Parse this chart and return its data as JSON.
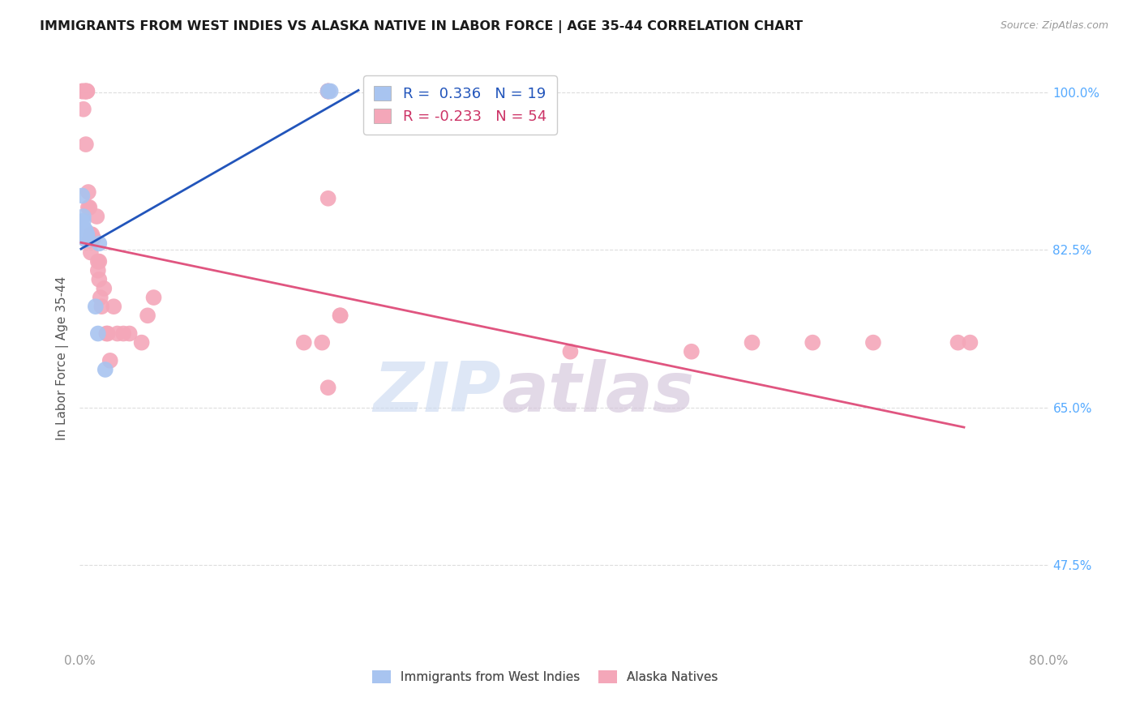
{
  "title": "IMMIGRANTS FROM WEST INDIES VS ALASKA NATIVE IN LABOR FORCE | AGE 35-44 CORRELATION CHART",
  "source": "Source: ZipAtlas.com",
  "ylabel": "In Labor Force | Age 35-44",
  "xlim": [
    0.0,
    0.8
  ],
  "ylim": [
    0.38,
    1.03
  ],
  "xticks": [
    0.0,
    0.1,
    0.2,
    0.3,
    0.4,
    0.5,
    0.6,
    0.7,
    0.8
  ],
  "xticklabels": [
    "0.0%",
    "",
    "",
    "",
    "",
    "",
    "",
    "",
    "80.0%"
  ],
  "ytick_labels_right": [
    "100.0%",
    "82.5%",
    "65.0%",
    "47.5%"
  ],
  "ytick_vals_right": [
    1.0,
    0.825,
    0.65,
    0.475
  ],
  "legend_r_blue": "0.336",
  "legend_n_blue": "19",
  "legend_r_pink": "-0.233",
  "legend_n_pink": "54",
  "blue_color": "#a8c4f0",
  "pink_color": "#f4a7b9",
  "blue_line_color": "#2255bb",
  "pink_line_color": "#e05580",
  "watermark_zip": "ZIP",
  "watermark_atlas": "atlas",
  "blue_line_x": [
    0.001,
    0.23
  ],
  "blue_line_y": [
    0.826,
    1.002
  ],
  "pink_line_x": [
    0.001,
    0.73
  ],
  "pink_line_y": [
    0.833,
    0.628
  ],
  "blue_points_x": [
    0.002,
    0.003,
    0.003,
    0.004,
    0.004,
    0.004,
    0.004,
    0.005,
    0.005,
    0.005,
    0.005,
    0.006,
    0.006,
    0.013,
    0.015,
    0.016,
    0.021,
    0.205,
    0.207
  ],
  "blue_points_y": [
    0.885,
    0.862,
    0.857,
    0.848,
    0.843,
    0.842,
    0.838,
    0.837,
    0.836,
    0.841,
    0.846,
    0.842,
    0.841,
    0.762,
    0.732,
    0.832,
    0.692,
    1.001,
    1.001
  ],
  "pink_points_x": [
    0.002,
    0.002,
    0.003,
    0.004,
    0.004,
    0.005,
    0.005,
    0.005,
    0.006,
    0.006,
    0.007,
    0.007,
    0.008,
    0.008,
    0.009,
    0.009,
    0.01,
    0.01,
    0.011,
    0.011,
    0.014,
    0.015,
    0.015,
    0.016,
    0.016,
    0.017,
    0.018,
    0.02,
    0.022,
    0.023,
    0.025,
    0.028,
    0.031,
    0.036,
    0.041,
    0.051,
    0.056,
    0.061,
    0.185,
    0.2,
    0.205,
    0.205,
    0.205,
    0.205,
    0.205,
    0.215,
    0.215,
    0.405,
    0.505,
    0.555,
    0.605,
    0.655,
    0.725,
    0.735
  ],
  "pink_points_y": [
    1.001,
    1.001,
    0.981,
    1.001,
    1.001,
    1.001,
    1.001,
    0.942,
    1.001,
    1.001,
    0.889,
    0.872,
    0.872,
    0.835,
    0.842,
    0.822,
    0.837,
    0.842,
    0.838,
    0.838,
    0.862,
    0.812,
    0.802,
    0.812,
    0.792,
    0.772,
    0.762,
    0.782,
    0.732,
    0.732,
    0.702,
    0.762,
    0.732,
    0.732,
    0.732,
    0.722,
    0.752,
    0.772,
    0.722,
    0.722,
    1.001,
    1.001,
    1.001,
    0.882,
    0.672,
    0.752,
    0.752,
    0.712,
    0.712,
    0.722,
    0.722,
    0.722,
    0.722,
    0.722
  ]
}
